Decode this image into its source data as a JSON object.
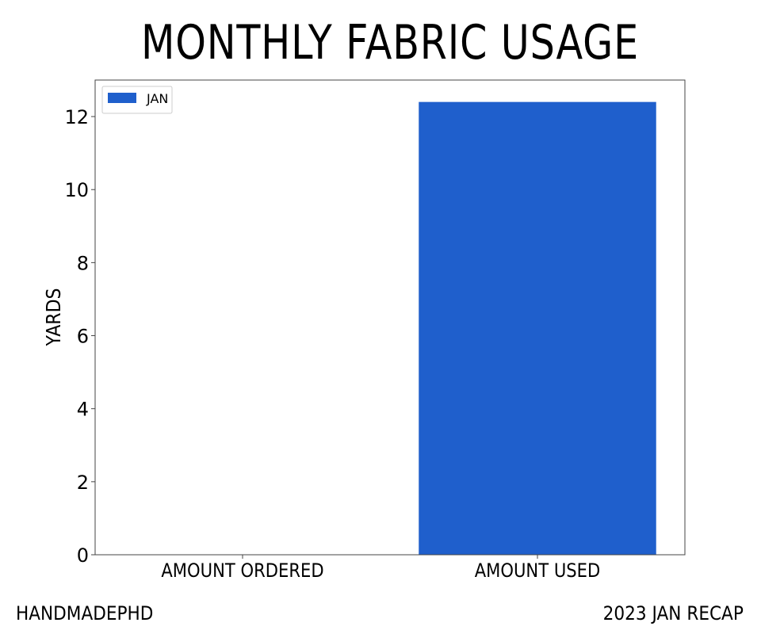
{
  "footer": {
    "left": "HANDMADEPHD",
    "right": "2023 JAN RECAP"
  },
  "colors": {
    "bar": "#1f5fcc",
    "axis": "#444444",
    "text": "#000000"
  },
  "chart_data": {
    "type": "bar",
    "title": "MONTHLY FABRIC USAGE",
    "categories": [
      "AMOUNT ORDERED",
      "AMOUNT USED"
    ],
    "series": [
      {
        "name": "JAN",
        "values": [
          0,
          12.4
        ]
      }
    ],
    "xlabel": "",
    "ylabel": "YARDS",
    "ylim": [
      0,
      13
    ],
    "yticks": [
      0,
      2,
      4,
      6,
      8,
      10,
      12
    ],
    "grid": false,
    "legend": "top-left"
  }
}
